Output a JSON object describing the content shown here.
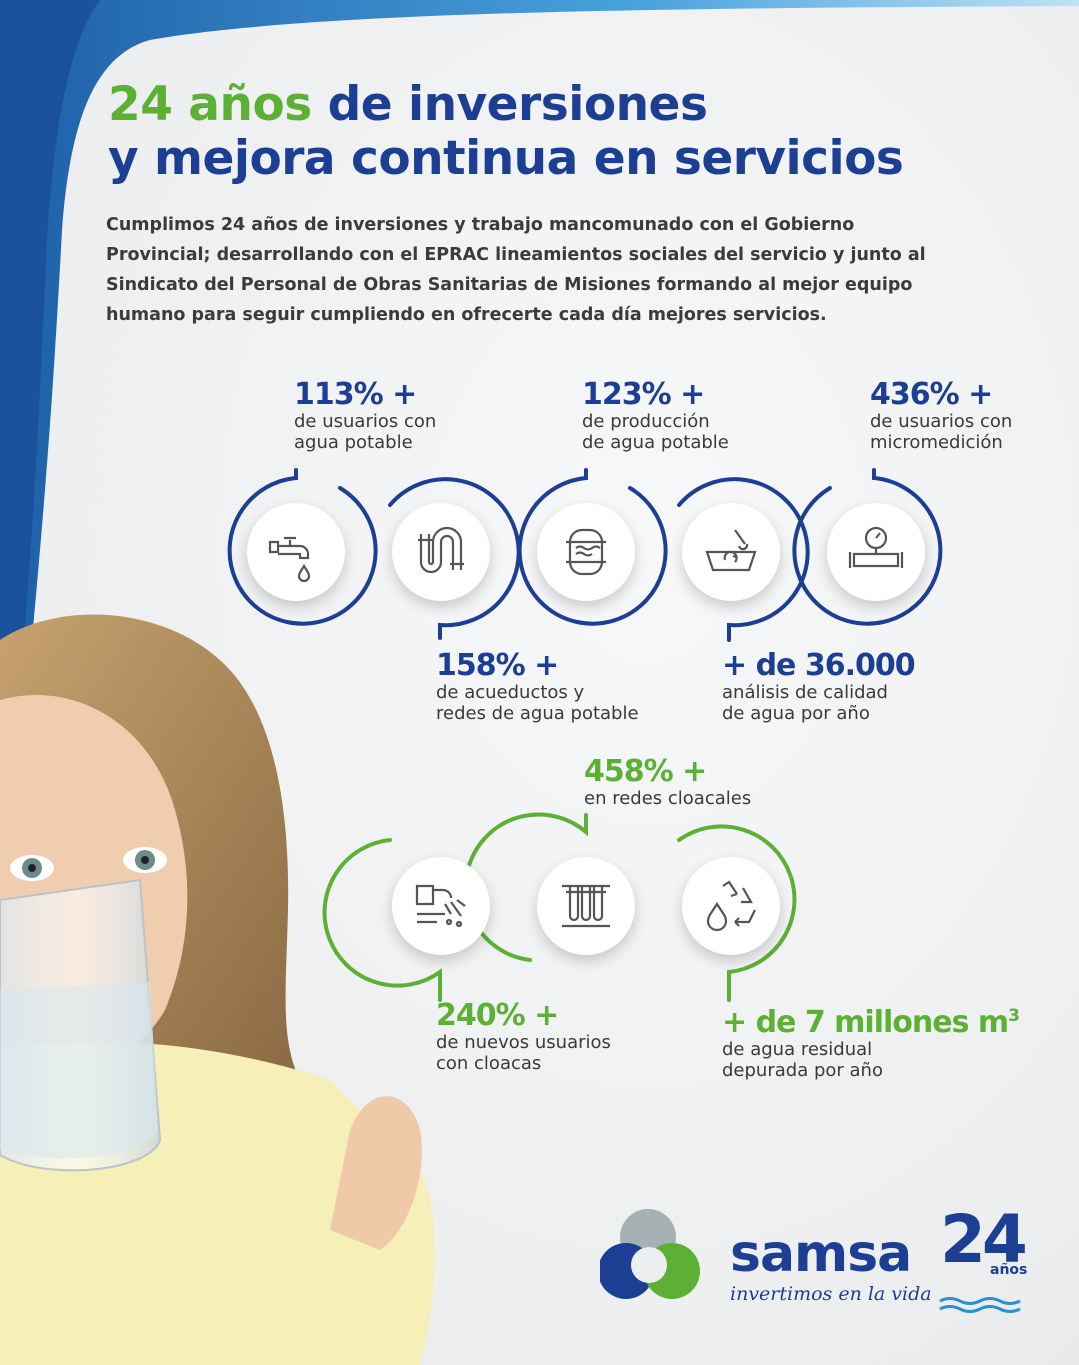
{
  "title": {
    "highlight": "24 años",
    "line1_rest": " de inversiones",
    "line2": "y mejora continua en servicios"
  },
  "intro": {
    "lines": [
      "Cumplimos 24 años de inversiones y trabajo mancomunado con el Gobierno",
      "Provincial; desarrollando con el EPRAC lineamientos sociales del servicio y junto al",
      "Sindicato del Personal de Obras Sanitarias de Misiones formando al mejor equipo",
      "humano para seguir cumpliendo en ofrecerte cada día mejores servicios."
    ]
  },
  "water_stats": [
    {
      "value": "113% +",
      "desc": [
        "de usuarios con",
        "agua potable"
      ],
      "icon": "faucet-icon"
    },
    {
      "value": "158% +",
      "desc": [
        "de acueductos y",
        "redes de agua potable"
      ],
      "icon": "pipe-icon"
    },
    {
      "value": "123% +",
      "desc": [
        "de producción",
        "de agua potable"
      ],
      "icon": "water-tank-icon"
    },
    {
      "value": "+ de 36.000",
      "desc": [
        "análisis de calidad",
        "de agua por año"
      ],
      "icon": "lab-analysis-icon"
    },
    {
      "value": "436% +",
      "desc": [
        "de usuarios con",
        "micromedición"
      ],
      "icon": "water-meter-icon"
    }
  ],
  "sewer_stats": [
    {
      "value": "240% +",
      "desc": [
        "de nuevos usuarios",
        "con cloacas"
      ],
      "icon": "sewer-outlet-icon"
    },
    {
      "value": "458% +",
      "desc": [
        "en redes cloacales"
      ],
      "icon": "sewer-network-icon"
    },
    {
      "value": "+ de 7 millones m",
      "value_sup": "3",
      "desc": [
        "de agua residual",
        "depurada por año"
      ],
      "icon": "recycle-water-icon"
    }
  ],
  "logo": {
    "brand": "samsa",
    "tagline": "invertimos en la vida",
    "anniversary_number": "24",
    "anniversary_word": "años"
  },
  "colors": {
    "blue": "#1c3f94",
    "green": "#5cb135",
    "text": "#3a3a3a"
  }
}
